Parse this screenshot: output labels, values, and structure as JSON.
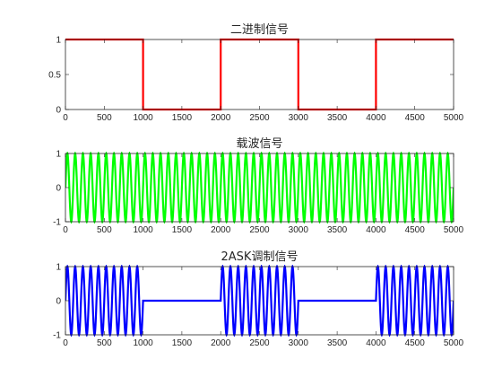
{
  "chart_data": [
    {
      "type": "line",
      "title": "二进制信号",
      "xlim": [
        0,
        5000
      ],
      "ylim": [
        0,
        1
      ],
      "xticks": [
        0,
        500,
        1000,
        1500,
        2000,
        2500,
        3000,
        3500,
        4000,
        4500,
        5000
      ],
      "yticks": [
        0,
        0.5,
        1
      ],
      "color": "#ff0000",
      "series": [
        {
          "kind": "square",
          "x": [
            0,
            1000,
            1000,
            2000,
            2000,
            3000,
            3000,
            4000,
            4000,
            5000
          ],
          "y": [
            1,
            1,
            0,
            0,
            1,
            1,
            0,
            0,
            1,
            1
          ]
        }
      ]
    },
    {
      "type": "line",
      "title": "载波信号",
      "xlim": [
        0,
        5000
      ],
      "ylim": [
        -1,
        1
      ],
      "xticks": [
        0,
        500,
        1000,
        1500,
        2000,
        2500,
        3000,
        3500,
        4000,
        4500,
        5000
      ],
      "yticks": [
        -1,
        0,
        1
      ],
      "color": "#00ff00",
      "series": [
        {
          "kind": "sine",
          "amplitude": 1,
          "period": 100,
          "x_range": [
            0,
            5000
          ]
        }
      ]
    },
    {
      "type": "line",
      "title": "2ASK调制信号",
      "xlim": [
        0,
        5000
      ],
      "ylim": [
        -1,
        1
      ],
      "xticks": [
        0,
        500,
        1000,
        1500,
        2000,
        2500,
        3000,
        3500,
        4000,
        4500,
        5000
      ],
      "yticks": [
        -1,
        0,
        1
      ],
      "color": "#0000ff",
      "series": [
        {
          "kind": "ask",
          "amplitude": 1,
          "period": 100,
          "on_intervals": [
            [
              0,
              1000
            ],
            [
              2000,
              3000
            ],
            [
              4000,
              5000
            ]
          ],
          "x_range": [
            0,
            5000
          ]
        }
      ]
    }
  ]
}
